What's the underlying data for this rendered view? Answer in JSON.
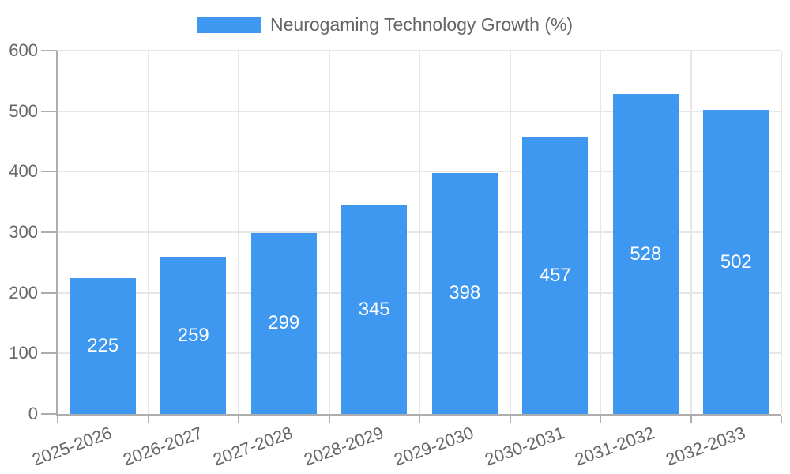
{
  "chart_data": {
    "type": "bar",
    "series_name": "Neurogaming Technology Growth (%)",
    "categories": [
      "2025-2026",
      "2026-2027",
      "2027-2028",
      "2028-2029",
      "2029-2030",
      "2030-2031",
      "2031-2032",
      "2032-2033"
    ],
    "values": [
      225,
      259,
      299,
      345,
      398,
      457,
      528,
      502
    ],
    "y_ticks": [
      0,
      100,
      200,
      300,
      400,
      500,
      600
    ],
    "ylim": [
      0,
      600
    ],
    "grid": true,
    "legend_position": "top",
    "bar_color": "#3E98EF",
    "value_label_color": "#ffffff",
    "axis_text_color": "#666666",
    "axis_line_color": "#adadad",
    "gridline_color": "#e6e6e6"
  }
}
